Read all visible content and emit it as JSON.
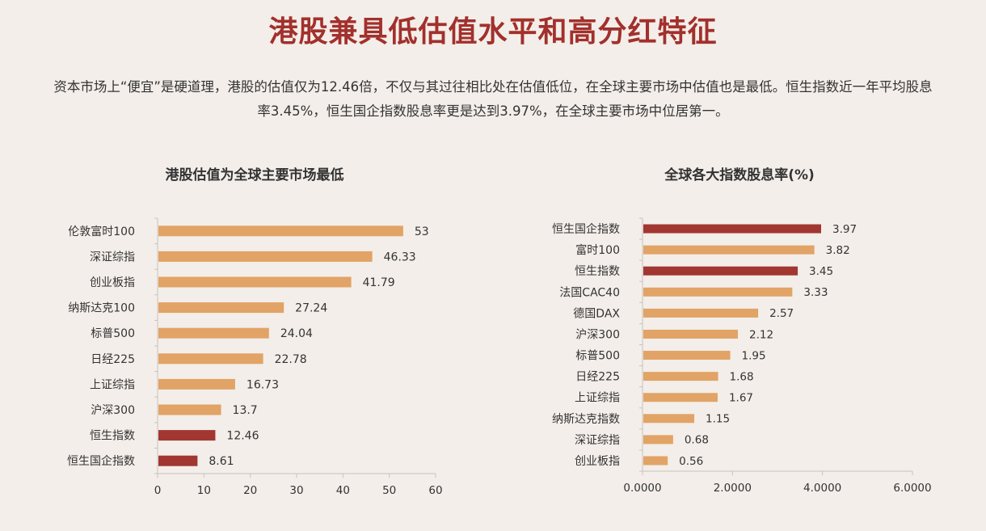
{
  "header": {
    "title": "港股兼具低估值水平和高分红特征",
    "intro_line1": "资本市场上“便宜”是硬道理，港股的估值仅为12.46倍，不仅与其过往相比处在估值低位，在全球主要市场中估值也是最低。恒生指数近一年平均股息",
    "intro_line2": "率3.45%，恒生国企指数股息率更是达到3.97%，在全球主要市场中位居第一。"
  },
  "colors": {
    "bar": "#e2a366",
    "highlight": "#a23631",
    "axis": "#c8c3bd",
    "label": "#333333"
  },
  "chart_data": [
    {
      "type": "bar",
      "orientation": "horizontal",
      "title": "港股估值为全球主要市场最低",
      "categories": [
        "伦敦富时100",
        "深证综指",
        "创业板指",
        "纳斯达克100",
        "标普500",
        "日经225",
        "上证综指",
        "沪深300",
        "恒生指数",
        "恒生国企指数"
      ],
      "values": [
        53,
        46.33,
        41.79,
        27.24,
        24.04,
        22.78,
        16.73,
        13.7,
        12.46,
        8.61
      ],
      "value_labels": [
        "53",
        "46.33",
        "41.79",
        "27.24",
        "24.04",
        "22.78",
        "16.73",
        "13.7",
        "12.46",
        "8.61"
      ],
      "highlight": [
        "恒生指数",
        "恒生国企指数"
      ],
      "xlim": [
        0,
        60
      ],
      "xticks": [
        "0",
        "10",
        "20",
        "30",
        "40",
        "50",
        "60"
      ],
      "grid": false,
      "legend": "none"
    },
    {
      "type": "bar",
      "orientation": "horizontal",
      "title": "全球各大指数股息率(%)",
      "categories": [
        "恒生国企指数",
        "富时100",
        "恒生指数",
        "法国CAC40",
        "德国DAX",
        "沪深300",
        "标普500",
        "日经225",
        "上证综指",
        "纳斯达克指数",
        "深证综指",
        "创业板指"
      ],
      "values": [
        3.97,
        3.82,
        3.45,
        3.33,
        2.57,
        2.12,
        1.95,
        1.68,
        1.67,
        1.15,
        0.68,
        0.56
      ],
      "value_labels": [
        "3.97",
        "3.82",
        "3.45",
        "3.33",
        "2.57",
        "2.12",
        "1.95",
        "1.68",
        "1.67",
        "1.15",
        "0.68",
        "0.56"
      ],
      "highlight": [
        "恒生国企指数",
        "恒生指数"
      ],
      "xlim": [
        0,
        6
      ],
      "xticks": [
        "0.0000",
        "2.0000",
        "4.0000",
        "6.0000"
      ],
      "grid": false,
      "legend": "none"
    }
  ]
}
